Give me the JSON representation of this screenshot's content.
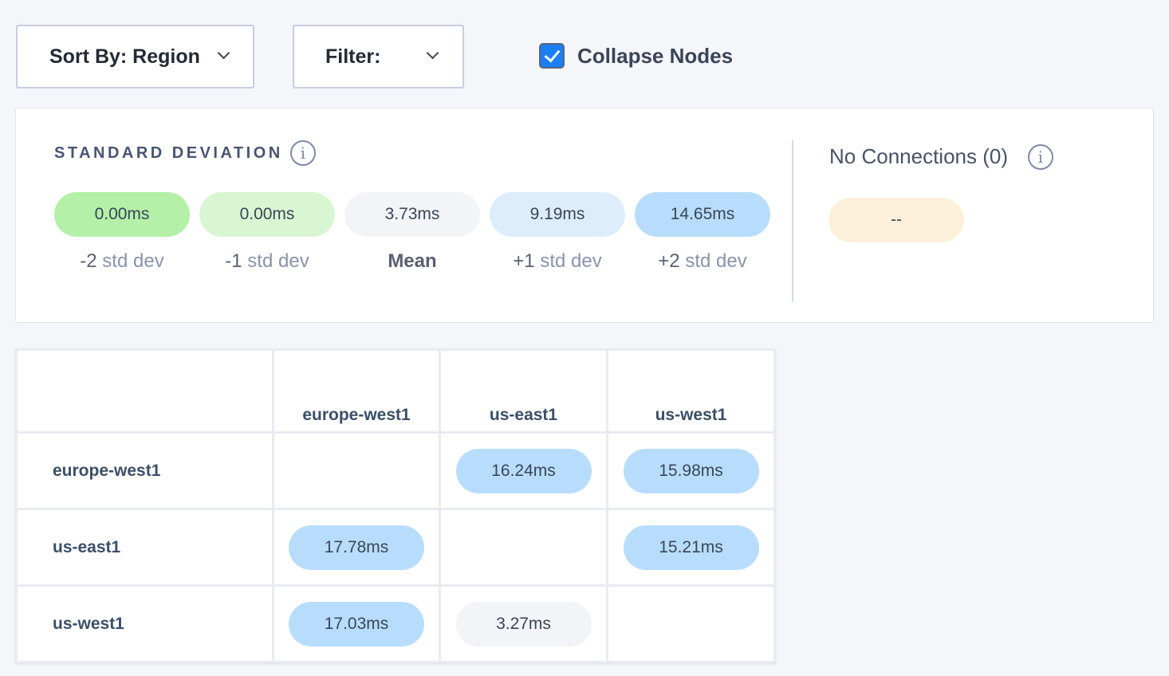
{
  "toolbar": {
    "sort_label": "Sort By: Region",
    "filter_label": "Filter:",
    "collapse_label": "Collapse Nodes",
    "collapse_checked": true
  },
  "legend": {
    "title": "STANDARD DEVIATION",
    "items": [
      {
        "value": "0.00ms",
        "prefix": "-2",
        "unit": " std dev",
        "color": "#b4f0a8"
      },
      {
        "value": "0.00ms",
        "prefix": "-1",
        "unit": " std dev",
        "color": "#d9f6d3"
      },
      {
        "value": "3.73ms",
        "prefix": "Mean",
        "unit": "",
        "color": "#f2f4f8"
      },
      {
        "value": "9.19ms",
        "prefix": "+1",
        "unit": " std dev",
        "color": "#deedfc"
      },
      {
        "value": "14.65ms",
        "prefix": "+2",
        "unit": " std dev",
        "color": "#b8ddfc"
      }
    ],
    "no_connections_label": "No Connections (0)",
    "no_connections_value": "--",
    "no_connections_color": "#fdf0da"
  },
  "matrix": {
    "columns": [
      "europe-west1",
      "us-east1",
      "us-west1"
    ],
    "rows": [
      {
        "label": "europe-west1",
        "cells": [
          "",
          "16.24ms",
          "15.98ms"
        ]
      },
      {
        "label": "us-east1",
        "cells": [
          "17.78ms",
          "",
          "15.21ms"
        ]
      },
      {
        "label": "us-west1",
        "cells": [
          "17.03ms",
          "3.27ms",
          ""
        ]
      }
    ]
  }
}
